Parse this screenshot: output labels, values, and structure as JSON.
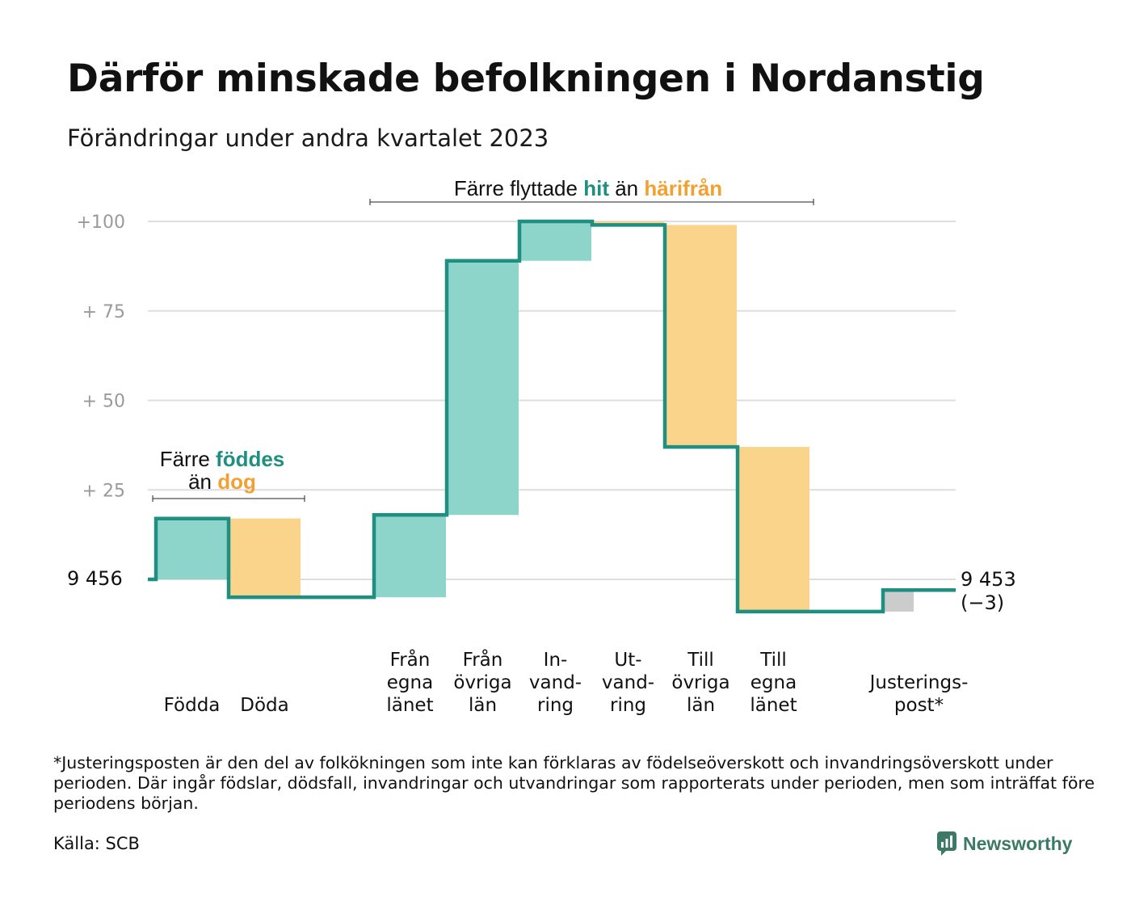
{
  "title": "Därför minskade befolkningen i Nordanstig",
  "subtitle": "Förändringar under andra kvartalet 2023",
  "footnote": "*Justeringsposten är den del av folkökningen som inte kan förklaras av födelseöverskott och invandringsöverskott under perioden. Där ingår födslar, dödsfall, invandringar och utvandringar som rapporterats under perioden, men som inträffat före periodens början.",
  "source": "Källa: SCB",
  "brand": "Newsworthy",
  "colors": {
    "increase": "#8dd4cb",
    "decrease": "#fad48b",
    "adjustment": "#cccccc",
    "line": "#1e8f80",
    "accent_teal": "#1e8f80",
    "accent_orange": "#f2a031",
    "grid": "#dedede",
    "axis_text": "#9a9a9a",
    "brand": "#3d7a66"
  },
  "chart_data": {
    "type": "waterfall",
    "start_value": 9456,
    "start_label": "9  456",
    "end_label": "9 453",
    "end_change_label": "(−3)",
    "y_ticks": [
      {
        "value": 100,
        "label": "+100"
      },
      {
        "value": 75,
        "label": "+  75"
      },
      {
        "value": 50,
        "label": "+  50"
      },
      {
        "value": 25,
        "label": "+  25"
      },
      {
        "value": 0,
        "label": ""
      }
    ],
    "ylim": [
      -10,
      100
    ],
    "grid": true,
    "categories": [
      {
        "lines": [
          "Födda"
        ],
        "change": 17,
        "kind": "increase"
      },
      {
        "lines": [
          "Döda"
        ],
        "change": -22,
        "kind": "decrease"
      },
      {
        "lines": [
          ""
        ],
        "change": 0,
        "kind": "gap"
      },
      {
        "lines": [
          "Från",
          "egna",
          "länet"
        ],
        "change": 23,
        "kind": "increase"
      },
      {
        "lines": [
          "Från",
          "övriga",
          "län"
        ],
        "change": 71,
        "kind": "increase"
      },
      {
        "lines": [
          "In-",
          "vand-",
          "ring"
        ],
        "change": 11,
        "kind": "increase"
      },
      {
        "lines": [
          "Ut-",
          "vand-",
          "ring"
        ],
        "change": -1,
        "kind": "decrease"
      },
      {
        "lines": [
          "Till",
          "övriga",
          "län"
        ],
        "change": -62,
        "kind": "decrease"
      },
      {
        "lines": [
          "Till",
          "egna",
          "länet"
        ],
        "change": -46,
        "kind": "decrease"
      },
      {
        "lines": [
          ""
        ],
        "change": 0,
        "kind": "gap"
      },
      {
        "lines": [
          "Justerings-",
          "post*"
        ],
        "change": 6,
        "kind": "adjustment"
      }
    ],
    "annotations": [
      {
        "name": "births-deaths",
        "parts": [
          {
            "line": 0,
            "text": "Färre ",
            "style": "plain"
          },
          {
            "line": 0,
            "text": "föddes",
            "style": "teal"
          },
          {
            "line": 1,
            "text": "än ",
            "style": "plain"
          },
          {
            "line": 1,
            "text": "dog",
            "style": "orange"
          }
        ]
      },
      {
        "name": "migration",
        "parts": [
          {
            "line": 0,
            "text": "Färre flyttade ",
            "style": "plain"
          },
          {
            "line": 0,
            "text": "hit",
            "style": "teal"
          },
          {
            "line": 0,
            "text": " än ",
            "style": "plain"
          },
          {
            "line": 0,
            "text": "härifrån",
            "style": "orange"
          }
        ]
      }
    ]
  }
}
